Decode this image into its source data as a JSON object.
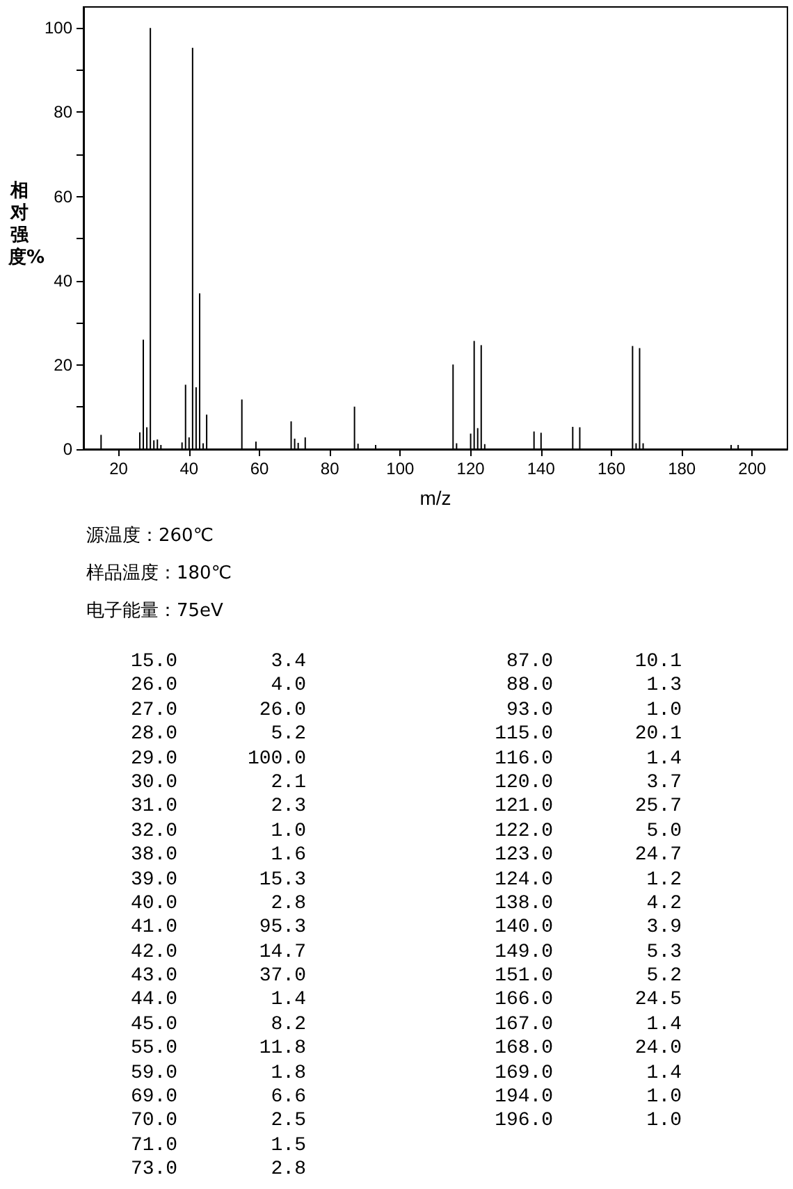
{
  "chart_data": [
    {
      "type": "bar",
      "xlabel": "m/z",
      "ylabel": "相对强度%",
      "annotations": [
        "源温度：260℃",
        "样品温度：180℃",
        "电子能量：75eV"
      ],
      "x": [
        15,
        26,
        27,
        28,
        29,
        30,
        31,
        32,
        38,
        39,
        40,
        41,
        42,
        43,
        44,
        45,
        55,
        59,
        69,
        70,
        71,
        73,
        87,
        88,
        93,
        115,
        116,
        120,
        121,
        122,
        123,
        124,
        138,
        140,
        149,
        151,
        166,
        167,
        168,
        169,
        194,
        196
      ],
      "values": [
        3.4,
        4.0,
        26.0,
        5.2,
        100.0,
        2.1,
        2.3,
        1.0,
        1.6,
        15.3,
        2.8,
        95.3,
        14.7,
        37.0,
        1.4,
        8.2,
        11.8,
        1.8,
        6.6,
        2.5,
        1.5,
        2.8,
        10.1,
        1.3,
        1.0,
        20.1,
        1.4,
        3.7,
        25.7,
        5.0,
        24.7,
        1.2,
        4.2,
        3.9,
        5.3,
        5.2,
        24.5,
        1.4,
        24.0,
        1.4,
        1.0,
        1.0
      ],
      "color": "#000000",
      "xlim": [
        10,
        210
      ],
      "xticks": [
        20,
        40,
        60,
        80,
        100,
        120,
        140,
        160,
        180,
        200
      ],
      "ylim": [
        0,
        105
      ],
      "yticks": [
        0,
        {
          "value": 10,
          "label": null
        },
        20,
        {
          "value": 30,
          "label": null
        },
        40,
        {
          "value": 50,
          "label": null
        },
        60,
        {
          "value": 70,
          "label": null
        },
        80,
        {
          "value": 90,
          "label": null
        },
        100
      ],
      "grid": false
    },
    {
      "type": "other",
      "annotations": [
        "15.0        3.4",
        "26.0        4.0",
        "27.0       26.0",
        "28.0        5.2",
        "29.0      100.0",
        "30.0        2.1",
        "31.0        2.3",
        "32.0        1.0",
        "38.0        1.6",
        "39.0       15.3",
        "40.0        2.8",
        "41.0       95.3",
        "42.0       14.7",
        "43.0       37.0",
        "44.0        1.4",
        "45.0        8.2",
        "55.0       11.8",
        "59.0        1.8",
        "69.0        6.6",
        "70.0        2.5",
        "71.0        1.5",
        "73.0        2.8",
        "87.0       10.1",
        "88.0        1.3",
        "93.0        1.0",
        "115.0       20.1",
        "116.0        1.4",
        "120.0        3.7",
        "121.0       25.7",
        "122.0        5.0",
        "123.0       24.7",
        "124.0        1.2",
        "138.0        4.2",
        "140.0        3.9",
        "149.0        5.3",
        "151.0        5.2",
        "166.0       24.5",
        "167.0        1.4",
        "168.0       24.0",
        "169.0        1.4",
        "194.0        1.0",
        "196.0        1.0"
      ]
    }
  ]
}
